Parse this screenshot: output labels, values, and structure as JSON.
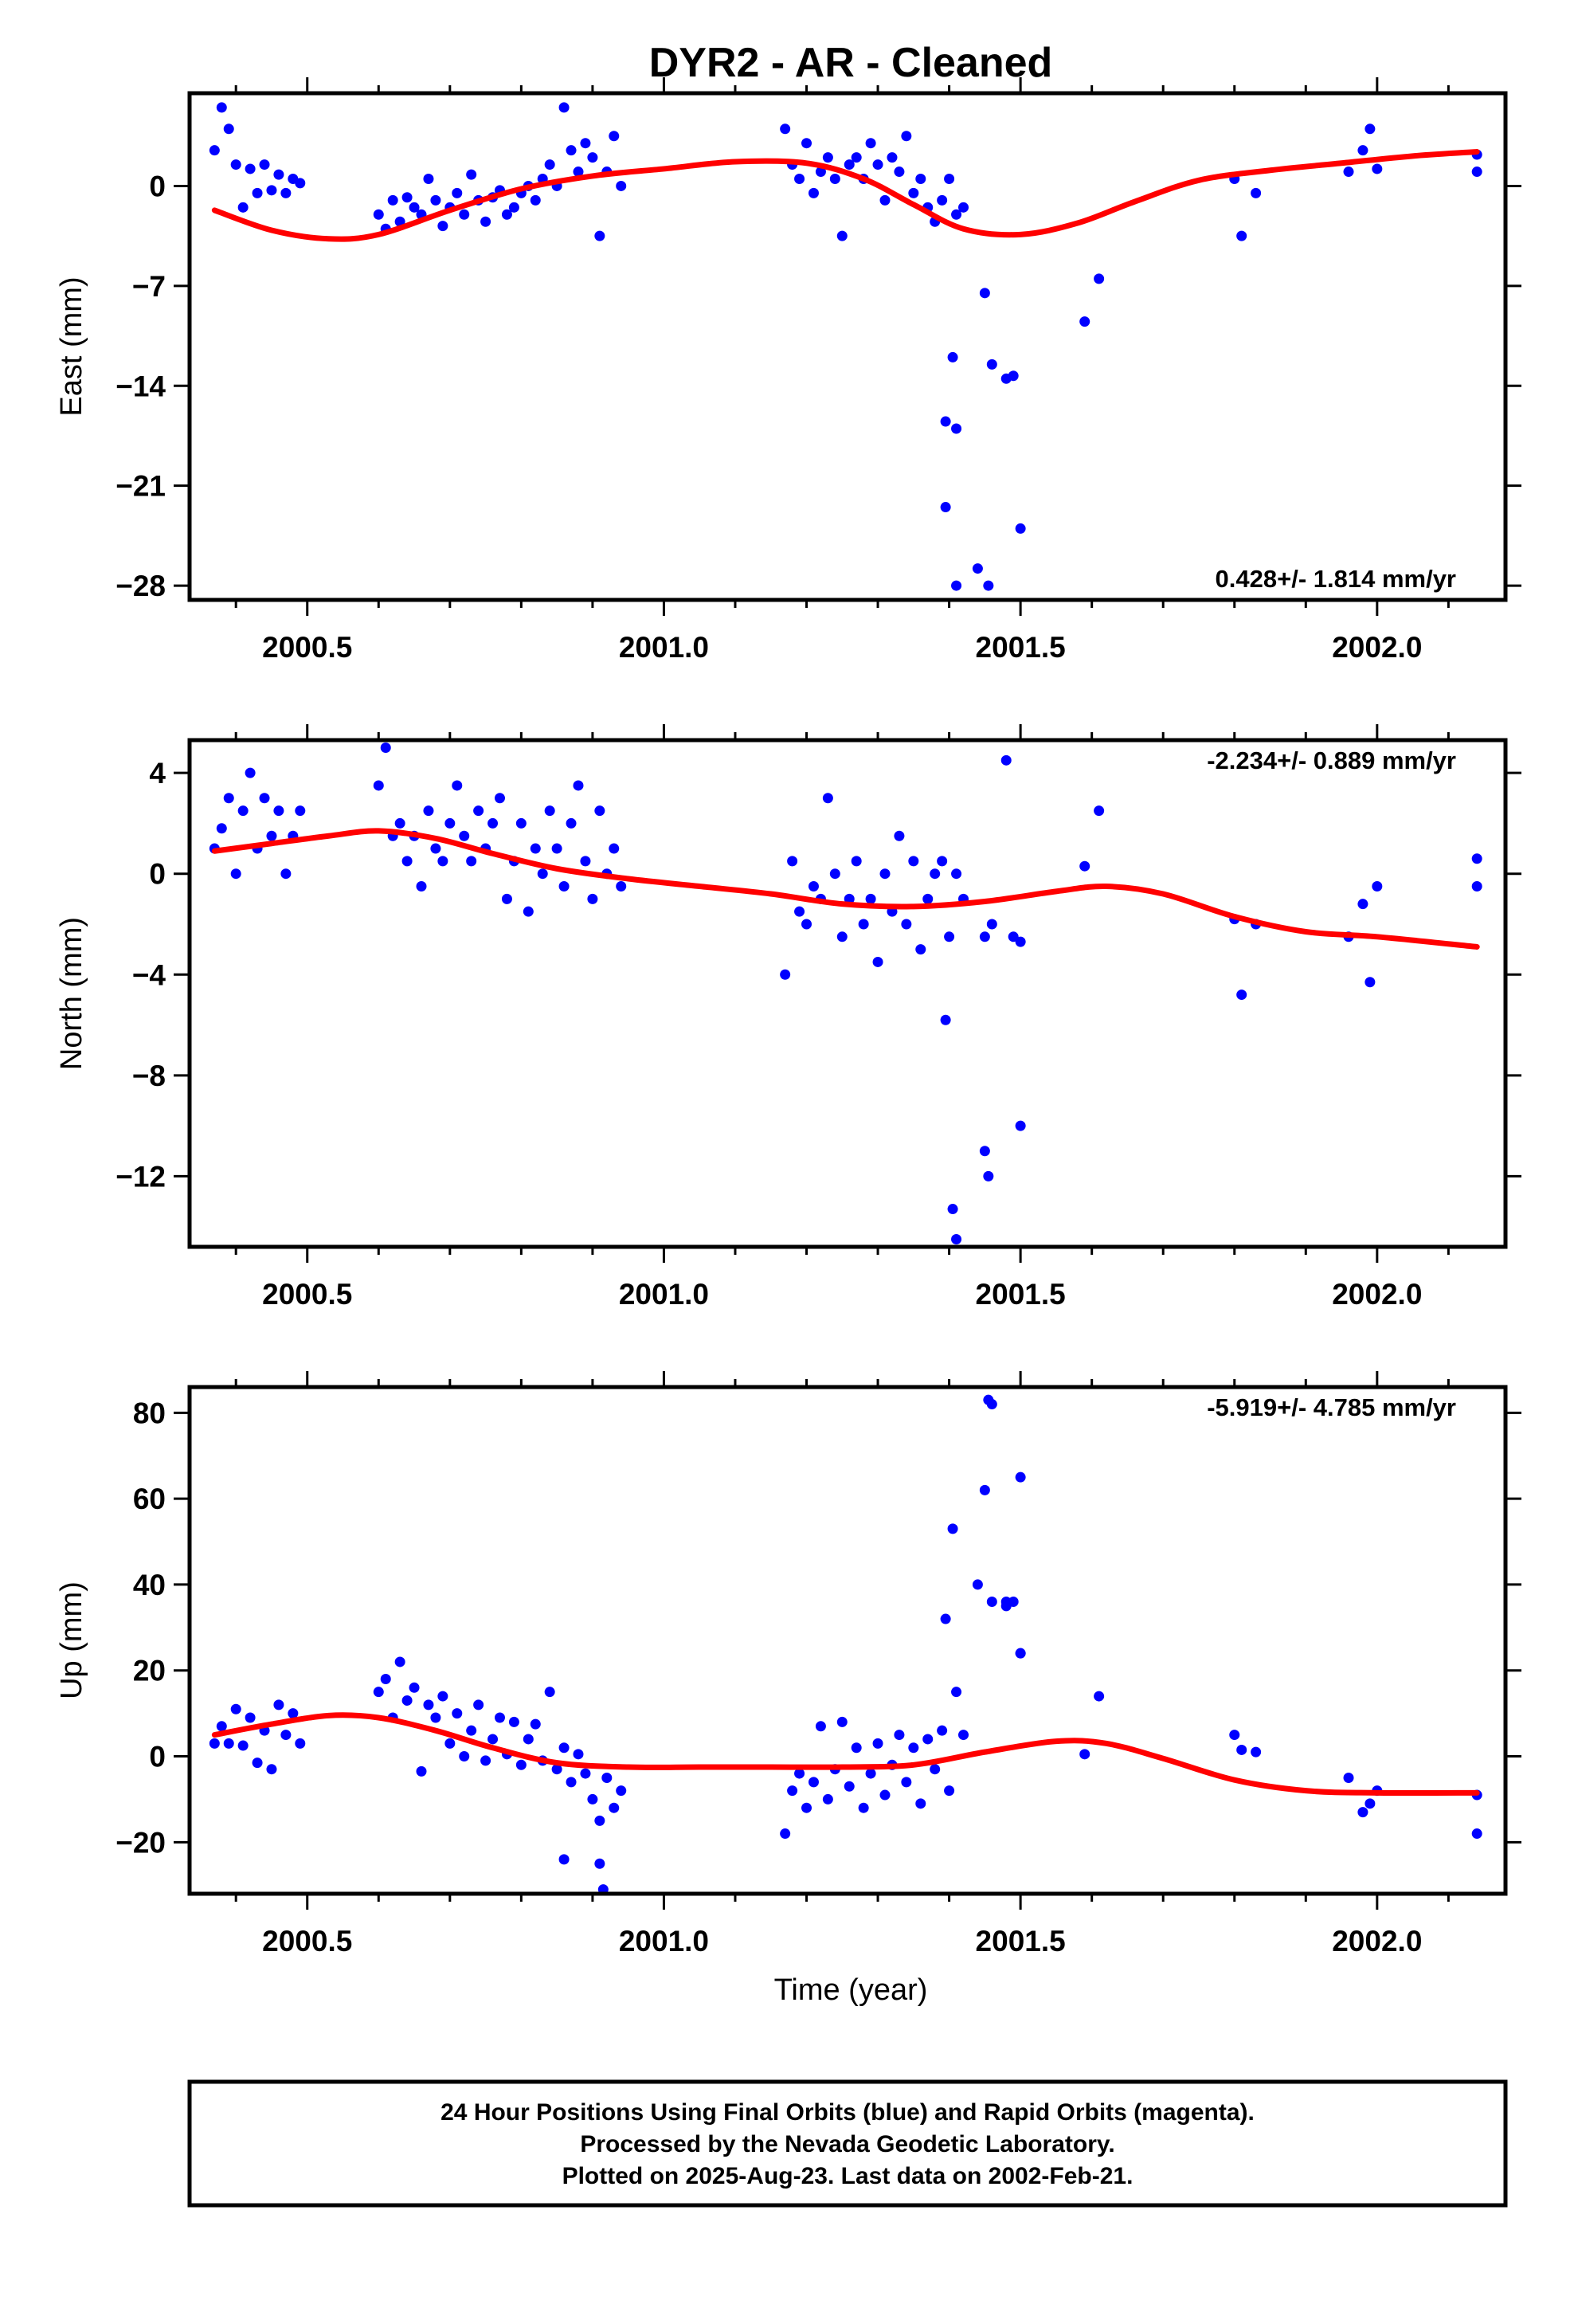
{
  "title": "DYR2  - AR - Cleaned",
  "xlabel": "Time (year)",
  "caption": {
    "lines": [
      "24 Hour Positions Using Final Orbits (blue) and Rapid Orbits (magenta).",
      "Processed by the Nevada Geodetic Laboratory.",
      "Plotted on 2025-Aug-23. Last data on 2002-Feb-21."
    ]
  },
  "colors": {
    "points": "#0000ff",
    "model": "#ff0000",
    "frame": "#000000"
  },
  "chart_data": [
    {
      "type": "scatter",
      "name": "east",
      "ylabel": "East (mm)",
      "rate_text": "0.428+/- 1.814 mm/yr",
      "xlim": [
        2000.335,
        2002.18
      ],
      "ylim": [
        -29.0,
        6.5
      ],
      "xticks": [
        "2000.5",
        "2001.0",
        "2001.5",
        "2002.0"
      ],
      "yticks": [
        "0",
        "-7",
        "-14",
        "-21",
        "-28"
      ],
      "model": {
        "x": [
          2000.37,
          2000.45,
          2000.53,
          2000.6,
          2000.7,
          2000.8,
          2000.9,
          2001.0,
          2001.1,
          2001.2,
          2001.28,
          2001.35,
          2001.42,
          2001.5,
          2001.58,
          2001.66,
          2001.75,
          2001.85,
          2001.95,
          2002.05,
          2002.14
        ],
        "y": [
          -1.7,
          -3.1,
          -3.7,
          -3.4,
          -1.7,
          -0.2,
          0.7,
          1.2,
          1.7,
          1.6,
          0.5,
          -1.3,
          -3.0,
          -3.4,
          -2.6,
          -1.1,
          0.4,
          1.1,
          1.6,
          2.1,
          2.4
        ]
      },
      "points": {
        "x": [
          2000.37,
          2000.38,
          2000.39,
          2000.4,
          2000.41,
          2000.42,
          2000.43,
          2000.44,
          2000.45,
          2000.46,
          2000.47,
          2000.48,
          2000.49,
          2000.6,
          2000.61,
          2000.62,
          2000.63,
          2000.64,
          2000.65,
          2000.66,
          2000.67,
          2000.68,
          2000.69,
          2000.7,
          2000.71,
          2000.72,
          2000.73,
          2000.74,
          2000.75,
          2000.76,
          2000.77,
          2000.78,
          2000.79,
          2000.8,
          2000.81,
          2000.82,
          2000.83,
          2000.84,
          2000.85,
          2000.86,
          2000.87,
          2000.88,
          2000.89,
          2000.9,
          2000.91,
          2000.92,
          2000.93,
          2000.94,
          2001.17,
          2001.18,
          2001.19,
          2001.2,
          2001.21,
          2001.22,
          2001.23,
          2001.24,
          2001.25,
          2001.26,
          2001.27,
          2001.28,
          2001.29,
          2001.3,
          2001.31,
          2001.32,
          2001.33,
          2001.34,
          2001.35,
          2001.36,
          2001.37,
          2001.38,
          2001.39,
          2001.4,
          2001.41,
          2001.42,
          2001.45,
          2001.46,
          2001.48,
          2001.49,
          2001.5,
          2001.59,
          2001.61,
          2001.8,
          2001.81,
          2001.83,
          2001.96,
          2001.98,
          2001.99,
          2002.0,
          2002.14,
          2002.14,
          2001.395,
          2001.405,
          2001.41,
          2001.455,
          2001.44,
          2001.41,
          2001.395
        ],
        "y": [
          2.5,
          5.5,
          4.0,
          1.5,
          -1.5,
          1.2,
          -0.5,
          1.5,
          -0.3,
          0.8,
          -0.5,
          0.5,
          0.2,
          -2.0,
          -3.0,
          -1.0,
          -2.5,
          -0.8,
          -1.5,
          -2.0,
          0.5,
          -1.0,
          -2.8,
          -1.5,
          -0.5,
          -2.0,
          0.8,
          -1.0,
          -2.5,
          -0.8,
          -0.3,
          -2.0,
          -1.5,
          -0.5,
          0.0,
          -1.0,
          0.5,
          1.5,
          0.0,
          5.5,
          2.5,
          1.0,
          3.0,
          2.0,
          -3.5,
          1.0,
          3.5,
          0.0,
          4.0,
          1.5,
          0.5,
          3.0,
          -0.5,
          1.0,
          2.0,
          0.5,
          -3.5,
          1.5,
          2.0,
          0.5,
          3.0,
          1.5,
          -1.0,
          2.0,
          1.0,
          3.5,
          -0.5,
          0.5,
          -1.5,
          -2.5,
          -1.0,
          0.5,
          -2.0,
          -1.5,
          -7.5,
          -12.5,
          -13.5,
          -13.3,
          -24.0,
          -9.5,
          -6.5,
          0.5,
          -3.5,
          -0.5,
          1.0,
          2.5,
          4.0,
          1.2,
          1.0,
          2.2,
          -16.5,
          -12.0,
          -17.0,
          -28.0,
          -26.8,
          -28.0,
          -22.5
        ]
      }
    },
    {
      "type": "scatter",
      "name": "north",
      "ylabel": "North (mm)",
      "rate_text": "-2.234+/- 0.889 mm/yr",
      "xlim": [
        2000.335,
        2002.18
      ],
      "ylim": [
        -14.8,
        5.3
      ],
      "xticks": [
        "2000.5",
        "2001.0",
        "2001.5",
        "2002.0"
      ],
      "yticks": [
        "4",
        "0",
        "-4",
        "-8",
        "-12"
      ],
      "model": {
        "x": [
          2000.37,
          2000.45,
          2000.53,
          2000.6,
          2000.68,
          2000.76,
          2000.85,
          2000.95,
          2001.05,
          2001.15,
          2001.25,
          2001.35,
          2001.45,
          2001.55,
          2001.62,
          2001.7,
          2001.8,
          2001.9,
          2002.0,
          2002.14
        ],
        "y": [
          0.9,
          1.2,
          1.5,
          1.7,
          1.4,
          0.8,
          0.2,
          -0.2,
          -0.5,
          -0.8,
          -1.2,
          -1.3,
          -1.1,
          -0.7,
          -0.5,
          -0.8,
          -1.7,
          -2.3,
          -2.5,
          -2.9
        ]
      },
      "points": {
        "x": [
          2000.37,
          2000.38,
          2000.39,
          2000.4,
          2000.41,
          2000.42,
          2000.43,
          2000.44,
          2000.45,
          2000.46,
          2000.47,
          2000.48,
          2000.49,
          2000.6,
          2000.61,
          2000.62,
          2000.63,
          2000.64,
          2000.65,
          2000.66,
          2000.67,
          2000.68,
          2000.69,
          2000.7,
          2000.71,
          2000.72,
          2000.73,
          2000.74,
          2000.75,
          2000.76,
          2000.77,
          2000.78,
          2000.79,
          2000.8,
          2000.81,
          2000.82,
          2000.83,
          2000.84,
          2000.85,
          2000.86,
          2000.87,
          2000.88,
          2000.89,
          2000.9,
          2000.91,
          2000.92,
          2000.93,
          2000.94,
          2001.17,
          2001.18,
          2001.19,
          2001.2,
          2001.21,
          2001.22,
          2001.23,
          2001.24,
          2001.25,
          2001.26,
          2001.27,
          2001.28,
          2001.29,
          2001.3,
          2001.31,
          2001.32,
          2001.33,
          2001.34,
          2001.35,
          2001.36,
          2001.37,
          2001.38,
          2001.39,
          2001.4,
          2001.41,
          2001.42,
          2001.45,
          2001.46,
          2001.48,
          2001.49,
          2001.5,
          2001.59,
          2001.61,
          2001.8,
          2001.81,
          2001.83,
          2001.96,
          2001.98,
          2001.99,
          2002.0,
          2002.14,
          2002.14,
          2001.395,
          2001.405,
          2001.41,
          2001.45,
          2001.455,
          2001.5
        ],
        "y": [
          1.0,
          1.8,
          3.0,
          0.0,
          2.5,
          4.0,
          1.0,
          3.0,
          1.5,
          2.5,
          0.0,
          1.5,
          2.5,
          3.5,
          5.0,
          1.5,
          2.0,
          0.5,
          1.5,
          -0.5,
          2.5,
          1.0,
          0.5,
          2.0,
          3.5,
          1.5,
          0.5,
          2.5,
          1.0,
          2.0,
          3.0,
          -1.0,
          0.5,
          2.0,
          -1.5,
          1.0,
          0.0,
          2.5,
          1.0,
          -0.5,
          2.0,
          3.5,
          0.5,
          -1.0,
          2.5,
          0.0,
          1.0,
          -0.5,
          -4.0,
          0.5,
          -1.5,
          -2.0,
          -0.5,
          -1.0,
          3.0,
          0.0,
          -2.5,
          -1.0,
          0.5,
          -2.0,
          -1.0,
          -3.5,
          0.0,
          -1.5,
          1.5,
          -2.0,
          0.5,
          -3.0,
          -1.0,
          0.0,
          0.5,
          -2.5,
          0.0,
          -1.0,
          -2.5,
          -2.0,
          4.5,
          -2.5,
          -10.0,
          0.3,
          2.5,
          -1.8,
          -4.8,
          -2.0,
          -2.5,
          -1.2,
          -4.3,
          -0.5,
          0.6,
          -0.5,
          -5.8,
          -13.3,
          -14.5,
          -11.0,
          -12.0,
          -2.7
        ],
        "note": ""
      }
    },
    {
      "type": "scatter",
      "name": "up",
      "ylabel": "Up (mm)",
      "rate_text": "-5.919+/- 4.785 mm/yr",
      "xlim": [
        2000.335,
        2002.18
      ],
      "ylim": [
        -32.0,
        86.0
      ],
      "xticks": [
        "2000.5",
        "2001.0",
        "2001.5",
        "2002.0"
      ],
      "yticks": [
        "80",
        "60",
        "40",
        "20",
        "0",
        "-20"
      ],
      "model": {
        "x": [
          2000.37,
          2000.45,
          2000.53,
          2000.6,
          2000.68,
          2000.76,
          2000.85,
          2000.95,
          2001.05,
          2001.15,
          2001.25,
          2001.35,
          2001.45,
          2001.55,
          2001.62,
          2001.7,
          2001.8,
          2001.9,
          2002.0,
          2002.14
        ],
        "y": [
          5.0,
          7.5,
          9.5,
          9.0,
          6.0,
          2.0,
          -1.5,
          -2.5,
          -2.5,
          -2.5,
          -2.5,
          -2.0,
          1.0,
          3.5,
          3.0,
          -0.5,
          -5.5,
          -8.0,
          -8.5,
          -8.5
        ]
      },
      "points": {
        "x": [
          2000.37,
          2000.38,
          2000.39,
          2000.4,
          2000.41,
          2000.42,
          2000.43,
          2000.44,
          2000.45,
          2000.46,
          2000.47,
          2000.48,
          2000.49,
          2000.6,
          2000.61,
          2000.62,
          2000.63,
          2000.64,
          2000.65,
          2000.66,
          2000.67,
          2000.68,
          2000.69,
          2000.7,
          2000.71,
          2000.72,
          2000.73,
          2000.74,
          2000.75,
          2000.76,
          2000.77,
          2000.78,
          2000.79,
          2000.8,
          2000.81,
          2000.82,
          2000.83,
          2000.84,
          2000.85,
          2000.86,
          2000.87,
          2000.88,
          2000.89,
          2000.9,
          2000.91,
          2000.92,
          2000.93,
          2000.94,
          2001.17,
          2001.18,
          2001.19,
          2001.2,
          2001.21,
          2001.22,
          2001.23,
          2001.24,
          2001.25,
          2001.26,
          2001.27,
          2001.28,
          2001.29,
          2001.3,
          2001.31,
          2001.32,
          2001.33,
          2001.34,
          2001.35,
          2001.36,
          2001.37,
          2001.38,
          2001.39,
          2001.4,
          2001.41,
          2001.42,
          2001.45,
          2001.46,
          2001.48,
          2001.49,
          2001.5,
          2001.59,
          2001.61,
          2001.8,
          2001.81,
          2001.83,
          2001.96,
          2001.98,
          2001.99,
          2002.0,
          2002.14,
          2002.14,
          2001.395,
          2001.405,
          2001.44,
          2001.455,
          2001.46,
          2001.5,
          2001.48,
          2001.5,
          2000.86,
          2000.91,
          2000.915
        ],
        "y": [
          3.0,
          7.0,
          3.0,
          11.0,
          2.5,
          9.0,
          -1.5,
          6.0,
          -3.0,
          12.0,
          5.0,
          10.0,
          3.0,
          15.0,
          18.0,
          9.0,
          22.0,
          13.0,
          16.0,
          -3.5,
          12.0,
          9.0,
          14.0,
          3.0,
          10.0,
          0.0,
          6.0,
          12.0,
          -1.0,
          4.0,
          9.0,
          0.5,
          8.0,
          -2.0,
          4.0,
          7.5,
          -1.0,
          15.0,
          -3.0,
          2.0,
          -6.0,
          0.5,
          -4.0,
          -10.0,
          -15.0,
          -5.0,
          -12.0,
          -8.0,
          -18.0,
          -8.0,
          -4.0,
          -12.0,
          -6.0,
          7.0,
          -10.0,
          -3.0,
          8.0,
          -7.0,
          2.0,
          -12.0,
          -4.0,
          3.0,
          -9.0,
          -2.0,
          5.0,
          -6.0,
          2.0,
          -11.0,
          4.0,
          -3.0,
          6.0,
          -8.0,
          15.0,
          5.0,
          62.0,
          36.0,
          35.0,
          36.0,
          24.0,
          0.5,
          14.0,
          5.0,
          1.5,
          1.0,
          -5.0,
          -13.0,
          -11.0,
          -8.0,
          -18.0,
          -9.0,
          32.0,
          53.0,
          40.0,
          83.0,
          82.0,
          65.0,
          36.0,
          24.0,
          -24.0,
          -25.0,
          -31.0
        ]
      }
    }
  ]
}
